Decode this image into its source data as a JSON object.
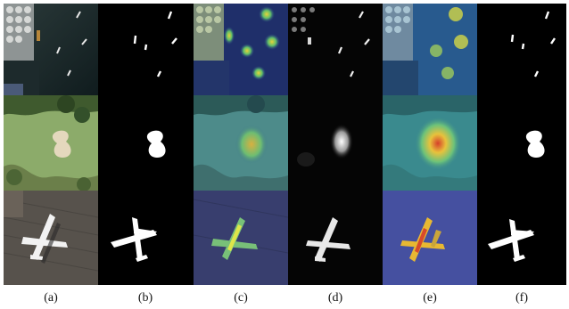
{
  "figure": {
    "panel_labels": [
      "(a)",
      "(b)",
      "(c)",
      "(d)",
      "(e)",
      "(f)"
    ]
  },
  "rows": [
    "ships",
    "golf-bunker",
    "airplane"
  ],
  "columns": [
    "aerial-image",
    "ground-truth-mask",
    "heatmap-overlay",
    "grayscale-saliency",
    "heatmap-overlay-2",
    "predicted-mask"
  ]
}
